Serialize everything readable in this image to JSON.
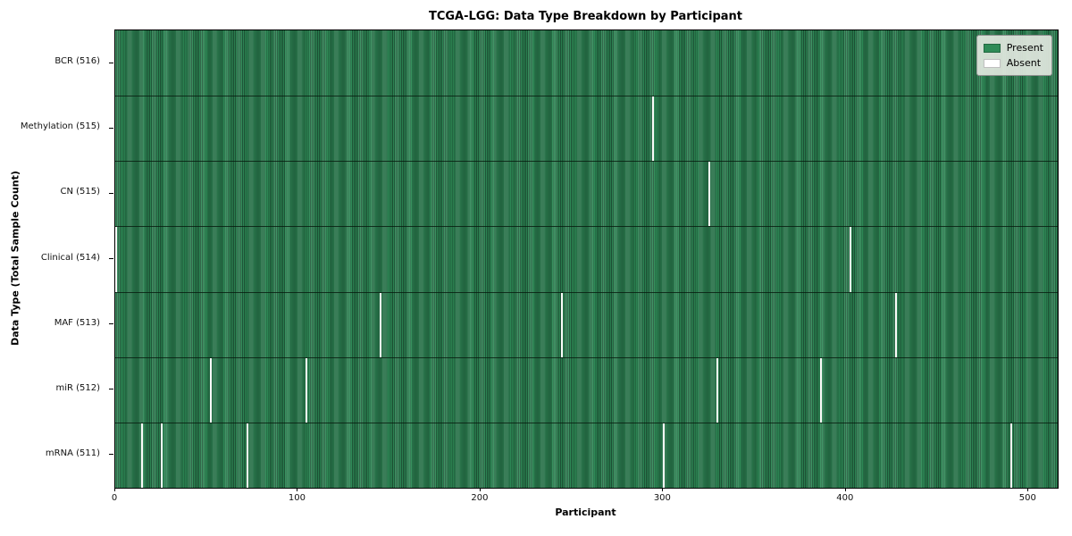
{
  "chart_data": {
    "type": "heatmap",
    "title": "TCGA-LGG: Data Type Breakdown by Participant",
    "xlabel": "Participant",
    "ylabel": "Data Type (Total Sample Count)",
    "xlim": [
      0,
      516
    ],
    "n_participants": 516,
    "x_ticks": [
      0,
      100,
      200,
      300,
      400,
      500
    ],
    "grid": false,
    "legend_position": "upper right",
    "colors": {
      "present": "#2e8b57",
      "present_edge": "#1f5638",
      "absent": "#fbfbf9",
      "row_separator": "rgba(6,26,14,0.8)"
    },
    "legend": [
      {
        "label": "Present",
        "color": "#2e8b57"
      },
      {
        "label": "Absent",
        "color": "#ffffff"
      }
    ],
    "rows": [
      {
        "name": "BCR",
        "label": "BCR (516)",
        "present_count": 516,
        "absent_participants": []
      },
      {
        "name": "Methylation",
        "label": "Methylation (515)",
        "present_count": 515,
        "absent_participants": [
          294
        ]
      },
      {
        "name": "CN",
        "label": "CN (515)",
        "present_count": 515,
        "absent_participants": [
          325
        ]
      },
      {
        "name": "Clinical",
        "label": "Clinical (514)",
        "present_count": 514,
        "absent_participants": [
          0,
          402
        ]
      },
      {
        "name": "MAF",
        "label": "MAF (513)",
        "present_count": 513,
        "absent_participants": [
          145,
          244,
          427
        ]
      },
      {
        "name": "miR",
        "label": "miR (512)",
        "present_count": 512,
        "absent_participants": [
          52,
          104,
          329,
          386
        ]
      },
      {
        "name": "mRNA",
        "label": "mRNA (511)",
        "present_count": 511,
        "absent_participants": [
          14,
          25,
          72,
          300,
          490
        ]
      }
    ]
  }
}
